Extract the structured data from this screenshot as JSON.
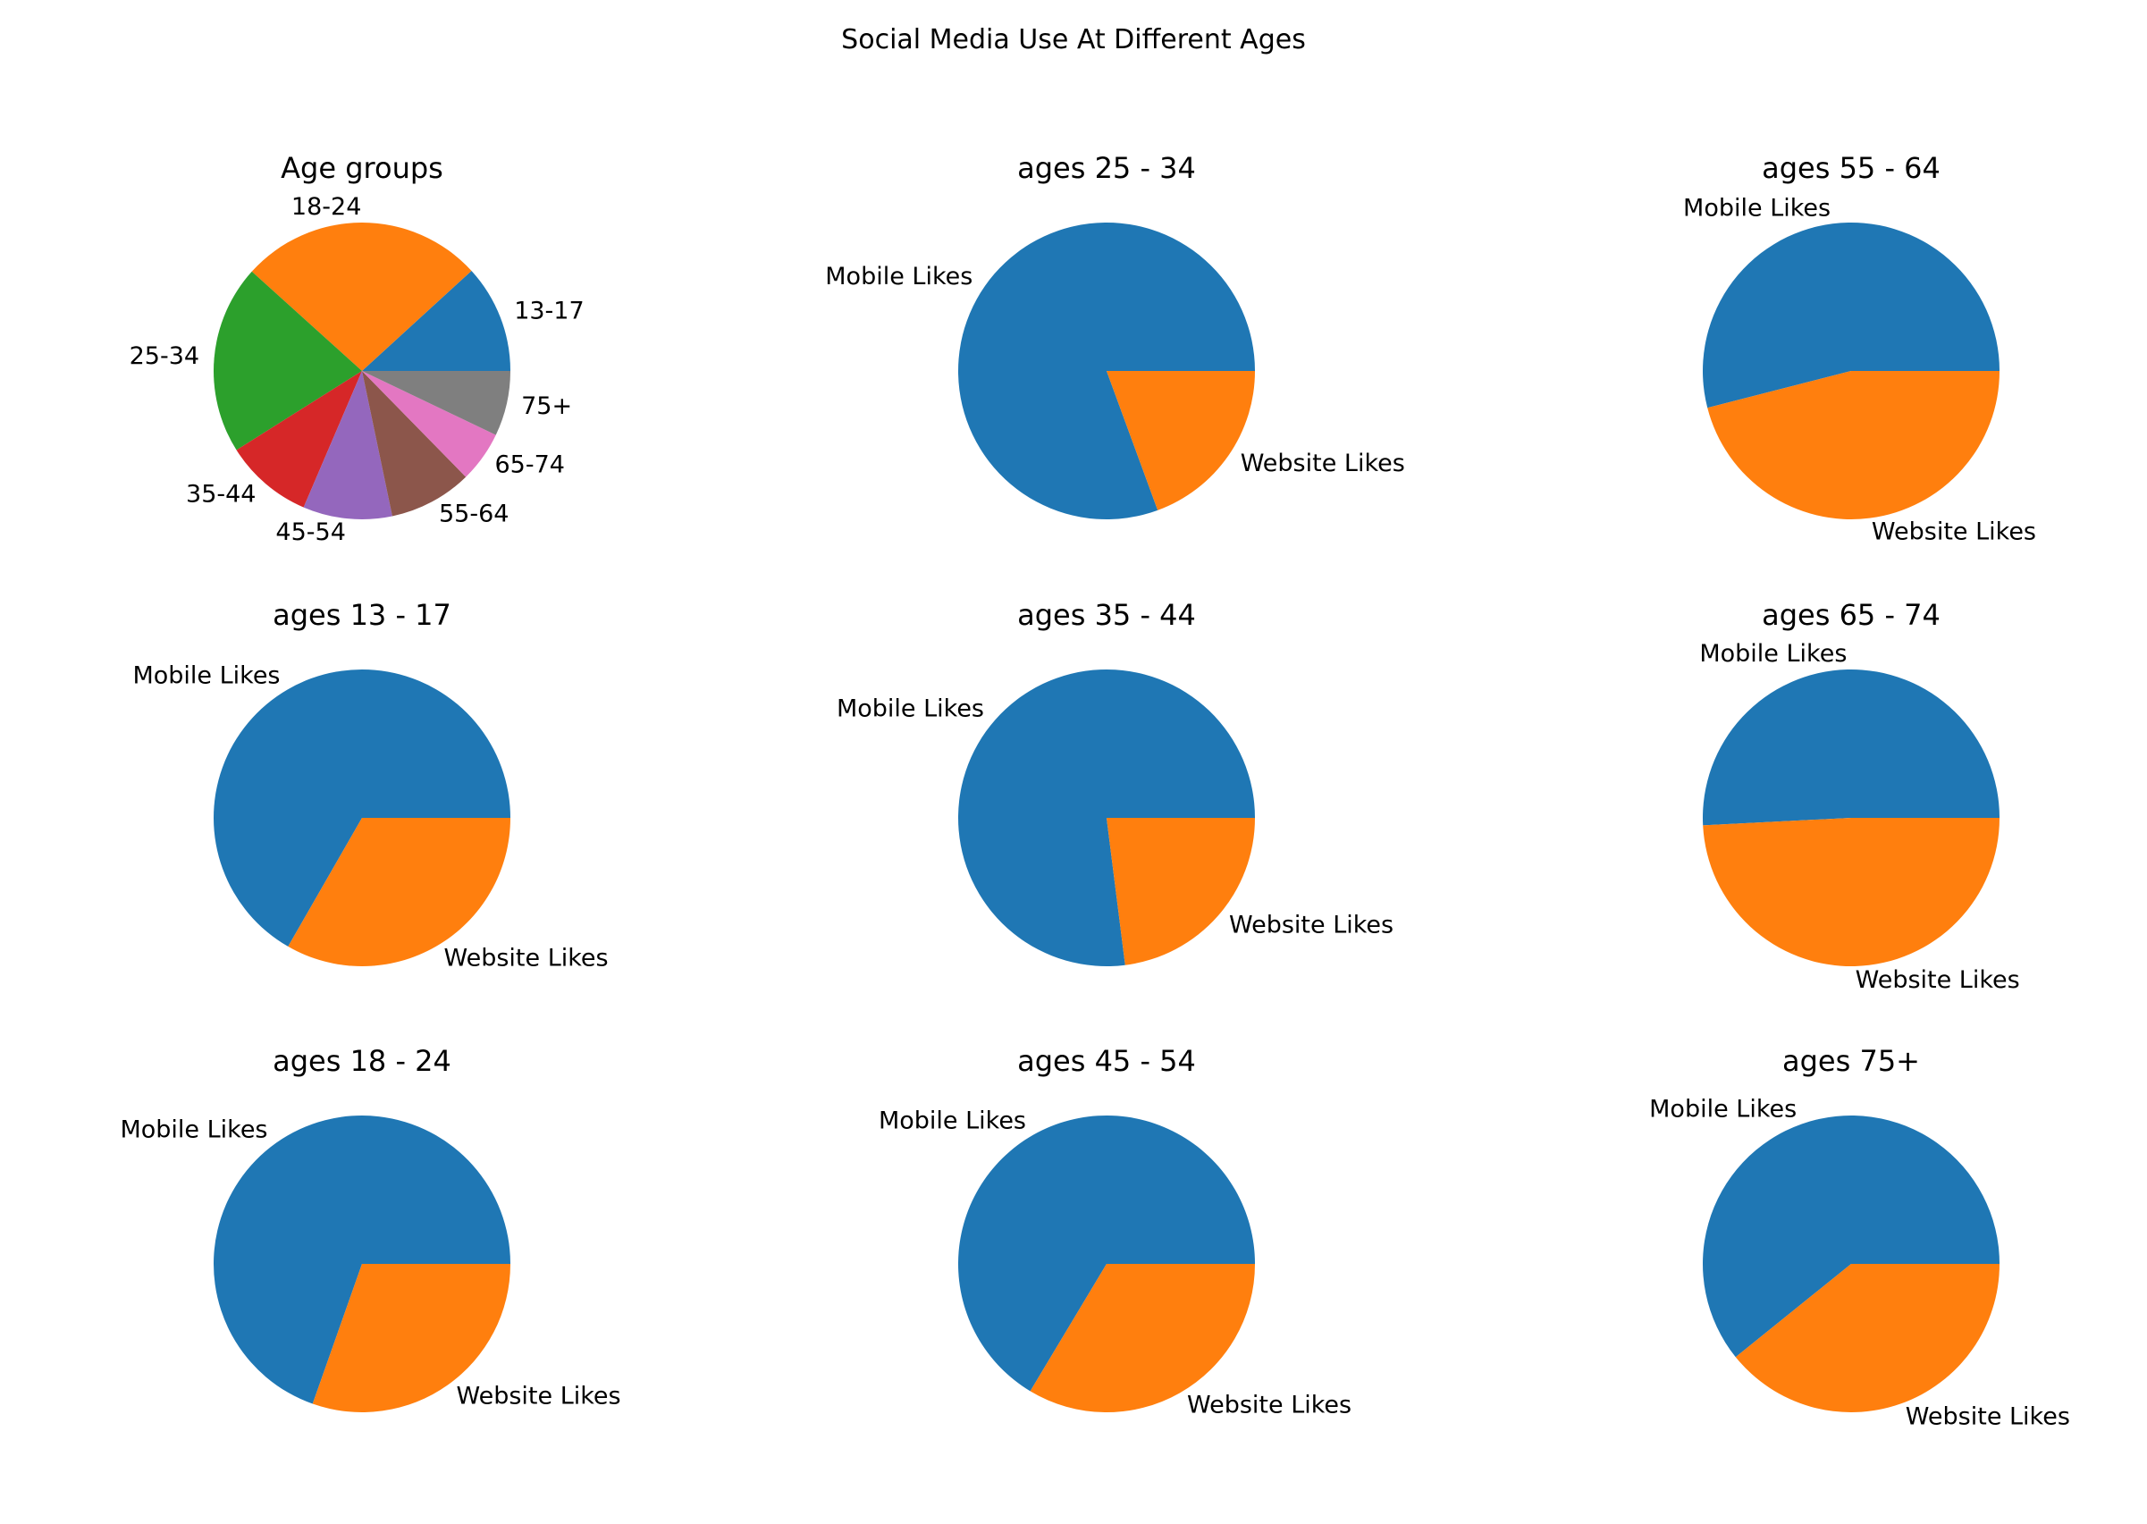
{
  "figure": {
    "suptitle": "Social Media Use At Different Ages",
    "background": "#ffffff"
  },
  "chart_data": [
    {
      "type": "pie",
      "title": "Age groups",
      "labels": [
        "13-17",
        "18-24",
        "25-34",
        "35-44",
        "45-54",
        "55-64",
        "65-74",
        "75+"
      ],
      "values": [
        10.8,
        24.3,
        18.9,
        8.8,
        8.9,
        8.3,
        5.1,
        6.5
      ],
      "colors": [
        "#1f77b4",
        "#ff7f0e",
        "#2ca02c",
        "#d62728",
        "#9467bd",
        "#8c564b",
        "#e377c2",
        "#7f7f7f"
      ]
    },
    {
      "type": "pie",
      "title": "ages 25 - 34",
      "labels": [
        "Mobile Likes",
        "Website Likes"
      ],
      "values": [
        80.6,
        19.4
      ],
      "colors": [
        "#1f77b4",
        "#ff7f0e"
      ]
    },
    {
      "type": "pie",
      "title": "ages 55 - 64",
      "labels": [
        "Mobile Likes",
        "Website Likes"
      ],
      "values": [
        54.0,
        46.0
      ],
      "colors": [
        "#1f77b4",
        "#ff7f0e"
      ]
    },
    {
      "type": "pie",
      "title": "ages 13 - 17",
      "labels": [
        "Mobile Likes",
        "Website Likes"
      ],
      "values": [
        66.7,
        33.3
      ],
      "colors": [
        "#1f77b4",
        "#ff7f0e"
      ]
    },
    {
      "type": "pie",
      "title": "ages 35 - 44",
      "labels": [
        "Mobile Likes",
        "Website Likes"
      ],
      "values": [
        77.0,
        23.0
      ],
      "colors": [
        "#1f77b4",
        "#ff7f0e"
      ]
    },
    {
      "type": "pie",
      "title": "ages 65 - 74",
      "labels": [
        "Mobile Likes",
        "Website Likes"
      ],
      "values": [
        50.8,
        49.2
      ],
      "colors": [
        "#1f77b4",
        "#ff7f0e"
      ]
    },
    {
      "type": "pie",
      "title": "ages 18 - 24",
      "labels": [
        "Mobile Likes",
        "Website Likes"
      ],
      "values": [
        69.6,
        30.4
      ],
      "colors": [
        "#1f77b4",
        "#ff7f0e"
      ]
    },
    {
      "type": "pie",
      "title": "ages 45 - 54",
      "labels": [
        "Mobile Likes",
        "Website Likes"
      ],
      "values": [
        66.4,
        33.6
      ],
      "colors": [
        "#1f77b4",
        "#ff7f0e"
      ]
    },
    {
      "type": "pie",
      "title": "ages 75+",
      "labels": [
        "Mobile Likes",
        "Website Likes"
      ],
      "values": [
        60.8,
        39.2
      ],
      "colors": [
        "#1f77b4",
        "#ff7f0e"
      ]
    }
  ]
}
